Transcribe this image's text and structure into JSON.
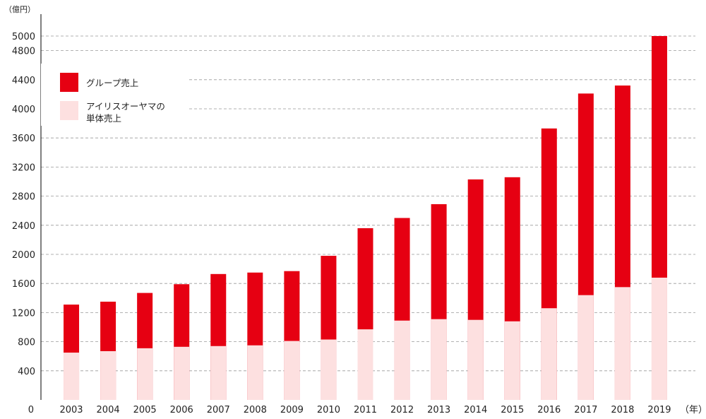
{
  "chart_data": {
    "type": "bar",
    "stacked": false,
    "overlaid": true,
    "y_unit": "（億円）",
    "x_unit": "（年）",
    "categories": [
      "2003",
      "2004",
      "2005",
      "2006",
      "2007",
      "2008",
      "2009",
      "2010",
      "2011",
      "2012",
      "2013",
      "2014",
      "2015",
      "2016",
      "2017",
      "2018",
      "2019"
    ],
    "series": [
      {
        "name": "グループ売上",
        "color": "#e60012",
        "values": [
          1310,
          1350,
          1470,
          1590,
          1730,
          1750,
          1770,
          1980,
          2360,
          2500,
          2690,
          3030,
          3060,
          3730,
          4210,
          4320,
          5000
        ]
      },
      {
        "name_lines": [
          "アイリスオーヤマの",
          "単体売上"
        ],
        "color": "#fde0e0",
        "values": [
          650,
          670,
          710,
          730,
          740,
          750,
          810,
          830,
          970,
          1090,
          1110,
          1100,
          1080,
          1260,
          1440,
          1550,
          1680
        ]
      }
    ],
    "y_ticks": [
      "0",
      "400",
      "800",
      "1200",
      "1600",
      "2000",
      "2400",
      "2800",
      "3200",
      "3600",
      "4000",
      "4400",
      "4800",
      "5000"
    ],
    "y_tick_values": [
      0,
      400,
      800,
      1200,
      1600,
      2000,
      2400,
      2800,
      3200,
      3600,
      4000,
      4400,
      4800,
      5000
    ],
    "ylim": [
      0,
      5000
    ],
    "grid": true,
    "legend_position": "top-left"
  }
}
